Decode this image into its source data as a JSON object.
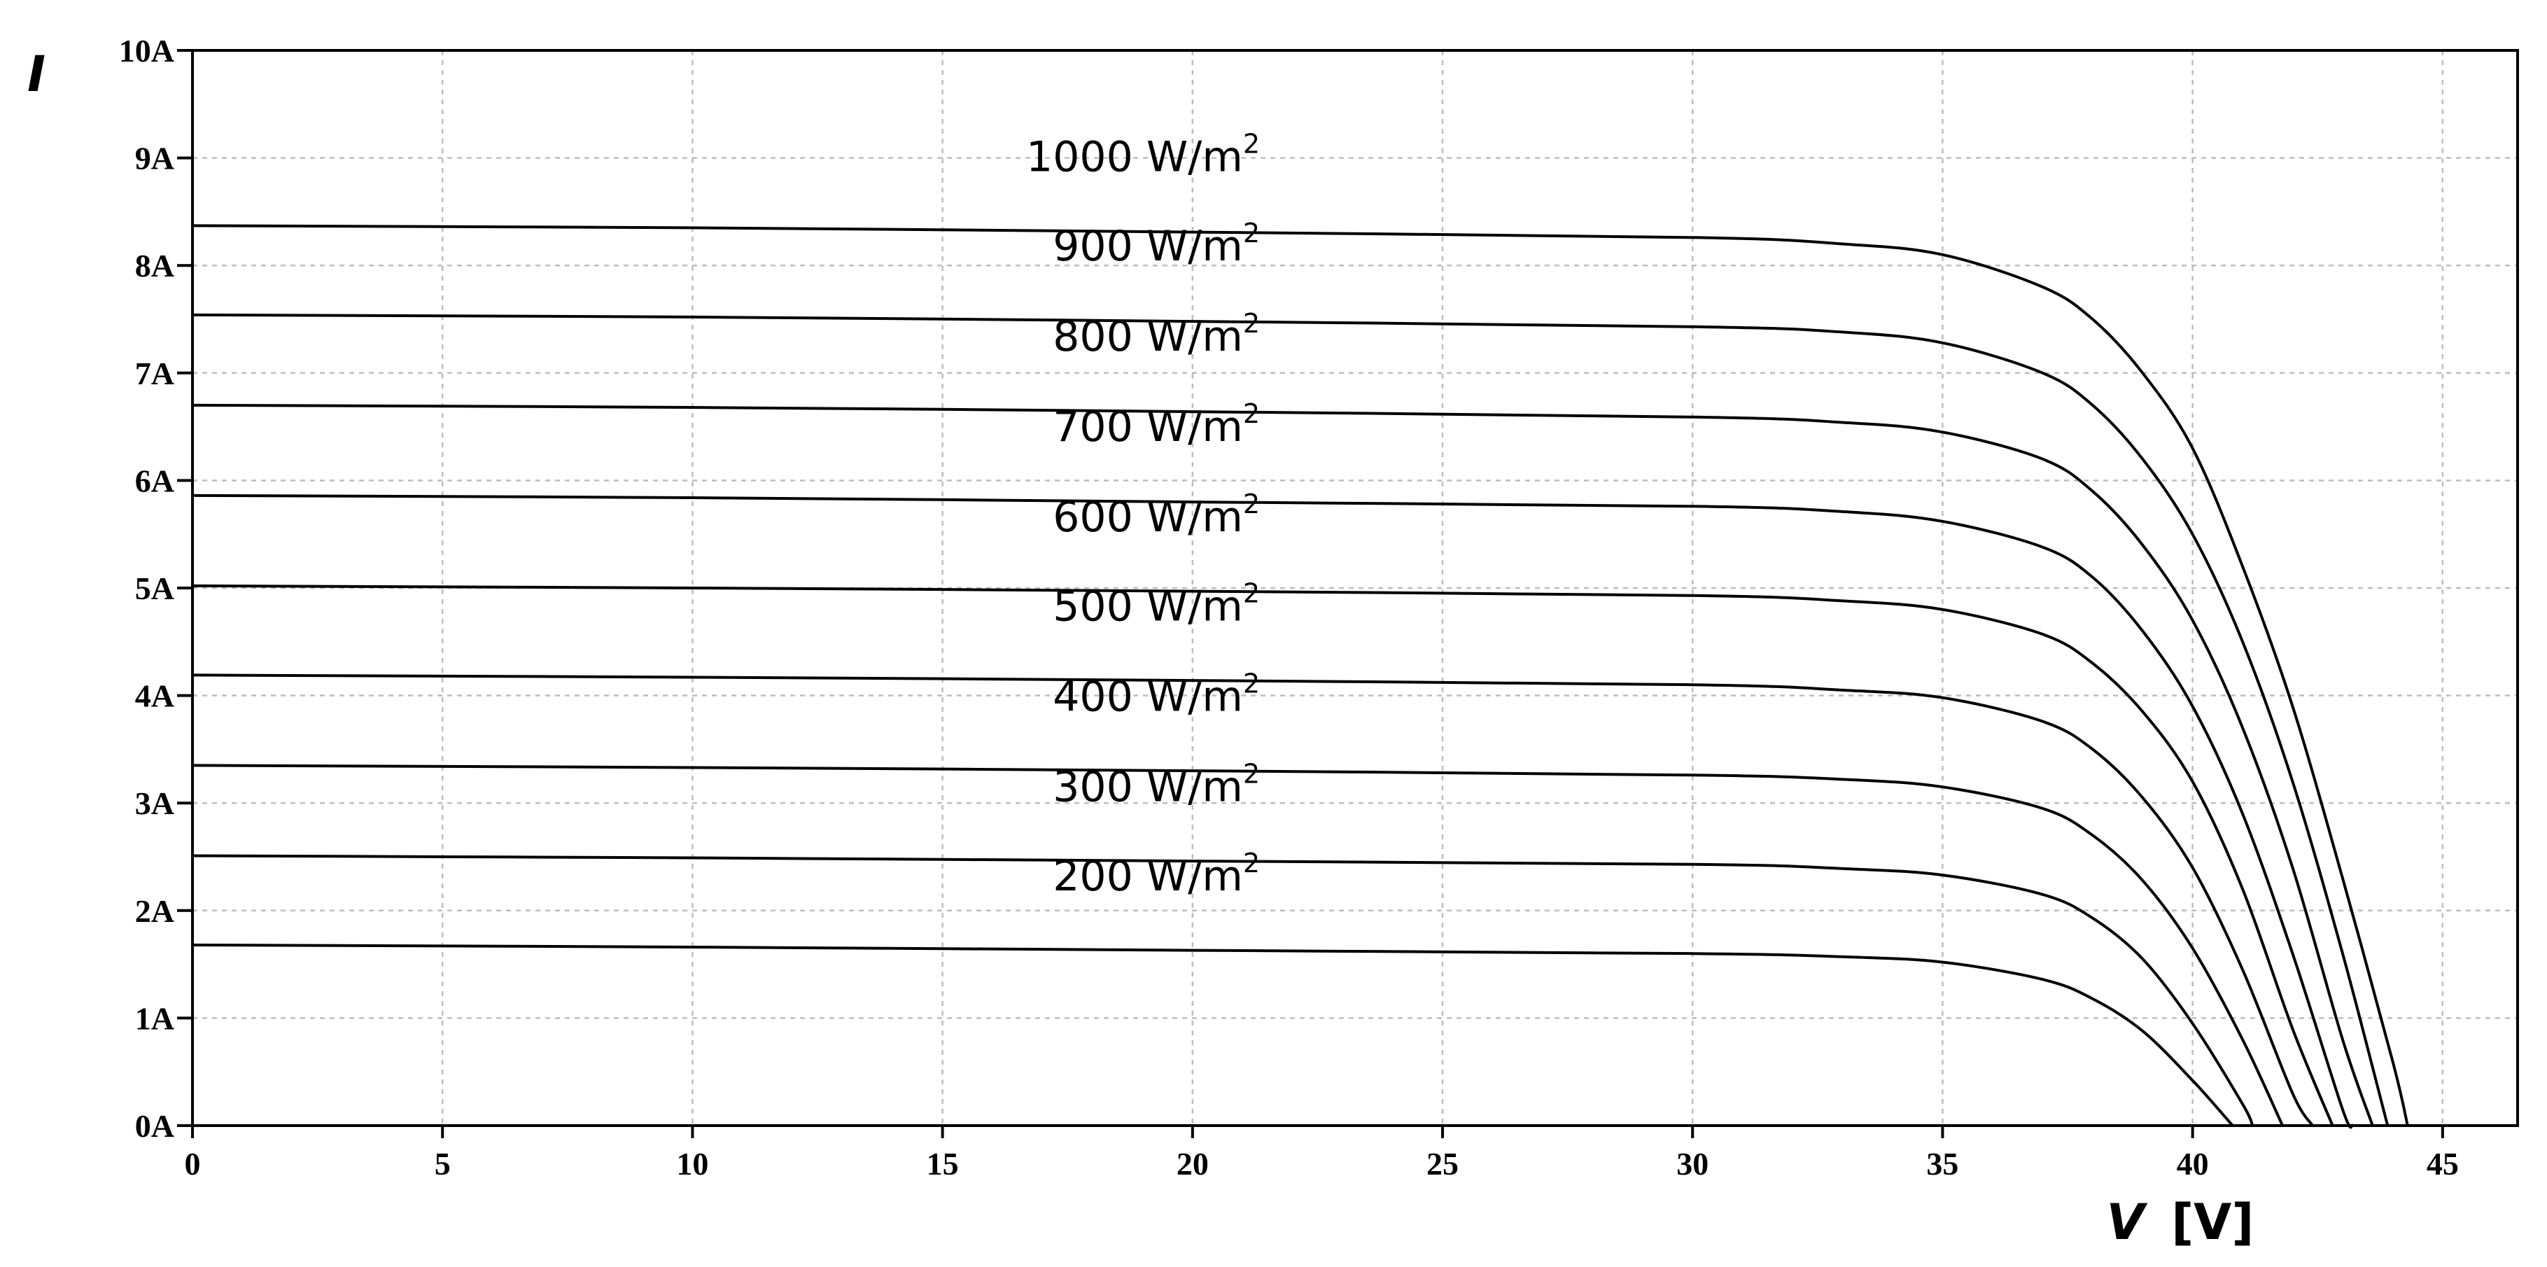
{
  "chart_data": {
    "type": "line",
    "title": "",
    "xlabel": "V",
    "xunit": "[V]",
    "ylabel": "I",
    "xlim": [
      0,
      46.5
    ],
    "ylim": [
      0,
      10
    ],
    "xticks": [
      0,
      5,
      10,
      15,
      20,
      25,
      30,
      35,
      40,
      45
    ],
    "xtick_labels": [
      "0",
      "5",
      "10",
      "15",
      "20",
      "25",
      "30",
      "35",
      "40",
      "45"
    ],
    "yticks": [
      0,
      1,
      2,
      3,
      4,
      5,
      6,
      7,
      8,
      9,
      10
    ],
    "ytick_labels": [
      "0A",
      "1A",
      "2A",
      "3A",
      "4A",
      "5A",
      "6A",
      "7A",
      "8A",
      "9A",
      "10A"
    ],
    "grid": true,
    "series": [
      {
        "name": "1000 W/m²",
        "label_base": "1000 W/m",
        "label_sup": "2",
        "points": [
          [
            0,
            8.37
          ],
          [
            10,
            8.35
          ],
          [
            20,
            8.31
          ],
          [
            30,
            8.26
          ],
          [
            33,
            8.2
          ],
          [
            35,
            8.1
          ],
          [
            37,
            7.8
          ],
          [
            38,
            7.5
          ],
          [
            39,
            7.0
          ],
          [
            40,
            6.3
          ],
          [
            41,
            5.2
          ],
          [
            42,
            3.9
          ],
          [
            43,
            2.3
          ],
          [
            44,
            0.6
          ],
          [
            44.3,
            0
          ]
        ]
      },
      {
        "name": "900 W/m²",
        "label_base": "900 W/m",
        "label_sup": "2",
        "points": [
          [
            0,
            7.54
          ],
          [
            10,
            7.52
          ],
          [
            20,
            7.48
          ],
          [
            30,
            7.43
          ],
          [
            33,
            7.38
          ],
          [
            35,
            7.28
          ],
          [
            37,
            7.0
          ],
          [
            38,
            6.7
          ],
          [
            39,
            6.2
          ],
          [
            40,
            5.5
          ],
          [
            41,
            4.5
          ],
          [
            42,
            3.2
          ],
          [
            43,
            1.6
          ],
          [
            43.9,
            0
          ]
        ]
      },
      {
        "name": "800 W/m²",
        "label_base": "800 W/m",
        "label_sup": "2",
        "points": [
          [
            0,
            6.7
          ],
          [
            10,
            6.68
          ],
          [
            20,
            6.64
          ],
          [
            30,
            6.59
          ],
          [
            33,
            6.54
          ],
          [
            35,
            6.45
          ],
          [
            37,
            6.2
          ],
          [
            38,
            5.9
          ],
          [
            39,
            5.4
          ],
          [
            40,
            4.7
          ],
          [
            41,
            3.7
          ],
          [
            42,
            2.4
          ],
          [
            43,
            0.8
          ],
          [
            43.6,
            0
          ]
        ]
      },
      {
        "name": "700 W/m²",
        "label_base": "700 W/m",
        "label_sup": "2",
        "points": [
          [
            0,
            5.86
          ],
          [
            10,
            5.84
          ],
          [
            20,
            5.8
          ],
          [
            30,
            5.76
          ],
          [
            33,
            5.71
          ],
          [
            35,
            5.62
          ],
          [
            37,
            5.38
          ],
          [
            38,
            5.1
          ],
          [
            39,
            4.6
          ],
          [
            40,
            3.9
          ],
          [
            41,
            2.9
          ],
          [
            42,
            1.6
          ],
          [
            43,
            0.15
          ],
          [
            43.2,
            0
          ]
        ]
      },
      {
        "name": "600 W/m²",
        "label_base": "600 W/m",
        "label_sup": "2",
        "points": [
          [
            0,
            5.02
          ],
          [
            10,
            5.0
          ],
          [
            20,
            4.97
          ],
          [
            30,
            4.93
          ],
          [
            33,
            4.88
          ],
          [
            35,
            4.8
          ],
          [
            37,
            4.57
          ],
          [
            38,
            4.3
          ],
          [
            39,
            3.85
          ],
          [
            40,
            3.2
          ],
          [
            41,
            2.2
          ],
          [
            42,
            0.9
          ],
          [
            42.8,
            0
          ]
        ]
      },
      {
        "name": "500 W/m²",
        "label_base": "500 W/m",
        "label_sup": "2",
        "points": [
          [
            0,
            4.19
          ],
          [
            10,
            4.17
          ],
          [
            20,
            4.14
          ],
          [
            30,
            4.1
          ],
          [
            33,
            4.05
          ],
          [
            35,
            3.98
          ],
          [
            37,
            3.76
          ],
          [
            38,
            3.5
          ],
          [
            39,
            3.05
          ],
          [
            40,
            2.4
          ],
          [
            41,
            1.45
          ],
          [
            42,
            0.3
          ],
          [
            42.4,
            0
          ]
        ]
      },
      {
        "name": "400 W/m²",
        "label_base": "400 W/m",
        "label_sup": "2",
        "points": [
          [
            0,
            3.35
          ],
          [
            10,
            3.33
          ],
          [
            20,
            3.3
          ],
          [
            30,
            3.26
          ],
          [
            33,
            3.22
          ],
          [
            35,
            3.15
          ],
          [
            37,
            2.95
          ],
          [
            38,
            2.7
          ],
          [
            39,
            2.28
          ],
          [
            40,
            1.65
          ],
          [
            41,
            0.8
          ],
          [
            41.8,
            0
          ]
        ]
      },
      {
        "name": "300 W/m²",
        "label_base": "300 W/m",
        "label_sup": "2",
        "points": [
          [
            0,
            2.51
          ],
          [
            10,
            2.49
          ],
          [
            20,
            2.46
          ],
          [
            30,
            2.43
          ],
          [
            33,
            2.39
          ],
          [
            35,
            2.33
          ],
          [
            37,
            2.15
          ],
          [
            38,
            1.93
          ],
          [
            39,
            1.55
          ],
          [
            40,
            0.95
          ],
          [
            41,
            0.2
          ],
          [
            41.2,
            0
          ]
        ]
      },
      {
        "name": "200 W/m²",
        "label_base": "200 W/m",
        "label_sup": "2",
        "points": [
          [
            0,
            1.68
          ],
          [
            10,
            1.66
          ],
          [
            20,
            1.63
          ],
          [
            30,
            1.6
          ],
          [
            33,
            1.57
          ],
          [
            35,
            1.52
          ],
          [
            37,
            1.36
          ],
          [
            38,
            1.18
          ],
          [
            39,
            0.88
          ],
          [
            40,
            0.42
          ],
          [
            40.8,
            0
          ]
        ]
      }
    ]
  }
}
